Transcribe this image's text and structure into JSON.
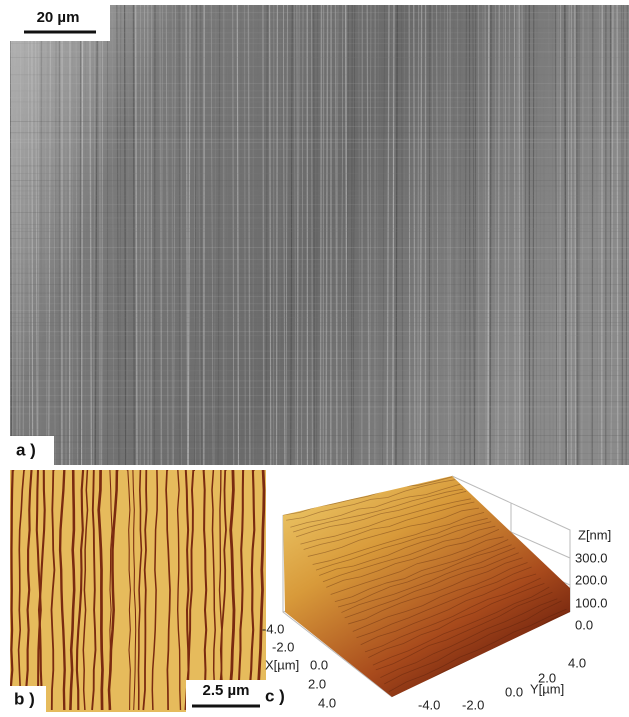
{
  "panel_a": {
    "scale_bar": "20 µm",
    "label": "a )"
  },
  "panel_b": {
    "scale_bar": "2.5 µm",
    "label": "b )"
  },
  "panel_c": {
    "label": "c )",
    "z_axis": {
      "title": "Z[nm]",
      "ticks": [
        "300.0",
        "200.0",
        "100.0",
        "0.0"
      ]
    },
    "x_axis": {
      "title": "X[µm]",
      "ticks": [
        "-4.0",
        "-2.0",
        "0.0",
        "2.0",
        "4.0"
      ]
    },
    "y_axis": {
      "title": "Y[µm]",
      "ticks": [
        "4.0",
        "2.0",
        "0.0",
        "-2.0",
        "-4.0"
      ]
    }
  }
}
